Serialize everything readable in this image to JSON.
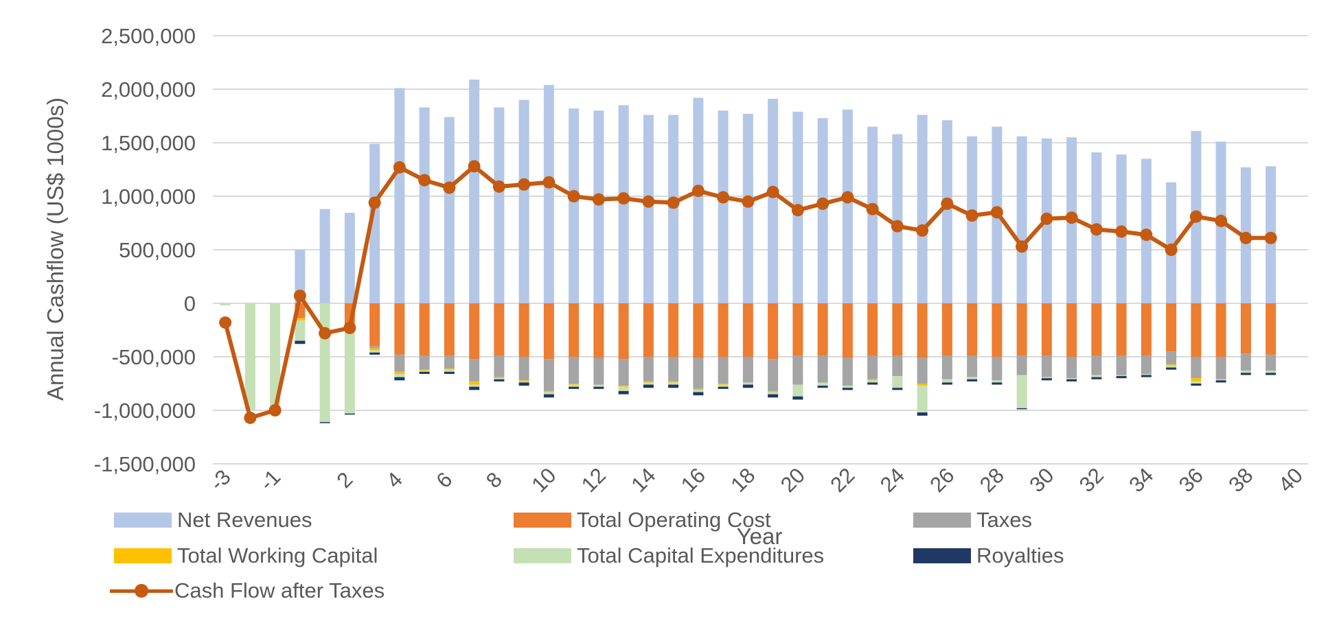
{
  "chart_data": {
    "type": "bar",
    "stacked": true,
    "title": "",
    "xlabel": "Year",
    "ylabel": "Annual Cashflow (US$ 1000s)",
    "ylim": [
      -1500000,
      2500000
    ],
    "yticks": [
      2500000,
      2000000,
      1500000,
      1000000,
      500000,
      0,
      -500000,
      -1000000,
      -1500000
    ],
    "ytick_labels": [
      "2,500,000",
      "2,000,000",
      "1,500,000",
      "1,000,000",
      "500,000",
      "0",
      "-500,000",
      "-1,000,000",
      "-1,500,000"
    ],
    "grid": true,
    "legend_position": "bottom",
    "x": [
      -3,
      -2,
      -1,
      0,
      1,
      2,
      3,
      4,
      5,
      6,
      7,
      8,
      9,
      10,
      11,
      12,
      13,
      14,
      15,
      16,
      17,
      18,
      19,
      20,
      21,
      22,
      23,
      24,
      25,
      26,
      27,
      28,
      29,
      30,
      31,
      32,
      33,
      34,
      35,
      36,
      37,
      38,
      39,
      40
    ],
    "x_tick_labels": [
      "-3",
      "-1",
      "2",
      "4",
      "6",
      "8",
      "10",
      "12",
      "14",
      "16",
      "18",
      "20",
      "22",
      "24",
      "26",
      "28",
      "30",
      "32",
      "34",
      "36",
      "38",
      "40"
    ],
    "series": [
      {
        "name": "Net Revenues",
        "color": "#b4c7e7",
        "values": [
          0,
          0,
          0,
          500000,
          880000,
          845000,
          1490000,
          2010000,
          1830000,
          1740000,
          2090000,
          1830000,
          1900000,
          2040000,
          1820000,
          1800000,
          1850000,
          1760000,
          1760000,
          1920000,
          1800000,
          1770000,
          1910000,
          1790000,
          1730000,
          1810000,
          1650000,
          1580000,
          1760000,
          1710000,
          1560000,
          1650000,
          1560000,
          1540000,
          1550000,
          1410000,
          1390000,
          1350000,
          1130000,
          1610000,
          1510000,
          1270000,
          1280000,
          0
        ]
      },
      {
        "name": "Total Operating Cost",
        "color": "#ed7d31",
        "values": [
          0,
          0,
          0,
          -140000,
          0,
          -230000,
          -400000,
          -480000,
          -490000,
          -490000,
          -520000,
          -490000,
          -500000,
          -520000,
          -500000,
          -510000,
          -520000,
          -500000,
          -500000,
          -510000,
          -500000,
          -500000,
          -520000,
          -490000,
          -490000,
          -510000,
          -490000,
          -490000,
          -510000,
          -490000,
          -490000,
          -500000,
          -490000,
          -490000,
          -500000,
          -490000,
          -490000,
          -490000,
          -450000,
          -500000,
          -500000,
          -470000,
          -480000,
          0
        ]
      },
      {
        "name": "Taxes",
        "color": "#a5a5a5",
        "values": [
          0,
          0,
          0,
          0,
          0,
          0,
          -20000,
          -160000,
          -130000,
          -120000,
          -210000,
          -200000,
          -220000,
          -300000,
          -250000,
          -250000,
          -250000,
          -230000,
          -230000,
          -290000,
          -250000,
          -240000,
          -300000,
          -270000,
          -250000,
          -260000,
          -220000,
          -190000,
          -240000,
          -220000,
          -200000,
          -220000,
          -180000,
          -200000,
          -200000,
          -180000,
          -180000,
          -170000,
          -120000,
          -200000,
          -210000,
          -160000,
          -150000,
          0
        ]
      },
      {
        "name": "Total Working Capital",
        "color": "#ffc000",
        "values": [
          0,
          0,
          0,
          -20000,
          0,
          0,
          -20000,
          -20000,
          -10000,
          -10000,
          -30000,
          -10000,
          -10000,
          -10000,
          -10000,
          0,
          -10000,
          -10000,
          -10000,
          -10000,
          -10000,
          0,
          -10000,
          0,
          0,
          0,
          -10000,
          0,
          -20000,
          0,
          0,
          0,
          0,
          0,
          0,
          0,
          0,
          0,
          -10000,
          -30000,
          0,
          0,
          0,
          0
        ]
      },
      {
        "name": "Total Capital Expenditures",
        "color": "#c5e0b4",
        "values": [
          -20000,
          -1000000,
          -980000,
          -190000,
          -1110000,
          -800000,
          -20000,
          -30000,
          -10000,
          -20000,
          -20000,
          -10000,
          -10000,
          -20000,
          -20000,
          -20000,
          -40000,
          -20000,
          -20000,
          -20000,
          -20000,
          -20000,
          -20000,
          -110000,
          -30000,
          -20000,
          -20000,
          -110000,
          -250000,
          -30000,
          -20000,
          -20000,
          -310000,
          -10000,
          -10000,
          -20000,
          -10000,
          -10000,
          -20000,
          -20000,
          -10000,
          -20000,
          -20000,
          0
        ]
      },
      {
        "name": "Royalties",
        "color": "#203864",
        "values": [
          0,
          0,
          0,
          -30000,
          -10000,
          -10000,
          -20000,
          -30000,
          -20000,
          -20000,
          -30000,
          -20000,
          -30000,
          -30000,
          -20000,
          -20000,
          -30000,
          -30000,
          -30000,
          -30000,
          -20000,
          -30000,
          -30000,
          -30000,
          -20000,
          -20000,
          -20000,
          -20000,
          -30000,
          -20000,
          -20000,
          -20000,
          -10000,
          -20000,
          -20000,
          -20000,
          -20000,
          -20000,
          -20000,
          -20000,
          -20000,
          -20000,
          -20000,
          0
        ]
      },
      {
        "name": "Cash Flow after Taxes",
        "color": "#c55a11",
        "type": "line",
        "values": [
          -180000,
          -1070000,
          -1000000,
          70000,
          -280000,
          -230000,
          940000,
          1270000,
          1150000,
          1080000,
          1280000,
          1090000,
          1110000,
          1130000,
          1000000,
          970000,
          980000,
          950000,
          940000,
          1050000,
          990000,
          950000,
          1040000,
          870000,
          930000,
          990000,
          880000,
          720000,
          680000,
          930000,
          820000,
          850000,
          530000,
          790000,
          800000,
          690000,
          670000,
          640000,
          500000,
          810000,
          770000,
          610000,
          610000,
          null
        ]
      }
    ]
  },
  "legend": {
    "items": [
      {
        "label": "Net Revenues",
        "color": "#b4c7e7"
      },
      {
        "label": "Total Operating Cost",
        "color": "#ed7d31"
      },
      {
        "label": "Taxes",
        "color": "#a5a5a5"
      },
      {
        "label": "Total Working Capital",
        "color": "#ffc000"
      },
      {
        "label": "Total Capital Expenditures",
        "color": "#c5e0b4"
      },
      {
        "label": "Royalties",
        "color": "#203864"
      },
      {
        "label": "Cash Flow after Taxes",
        "color": "#c55a11"
      }
    ]
  }
}
